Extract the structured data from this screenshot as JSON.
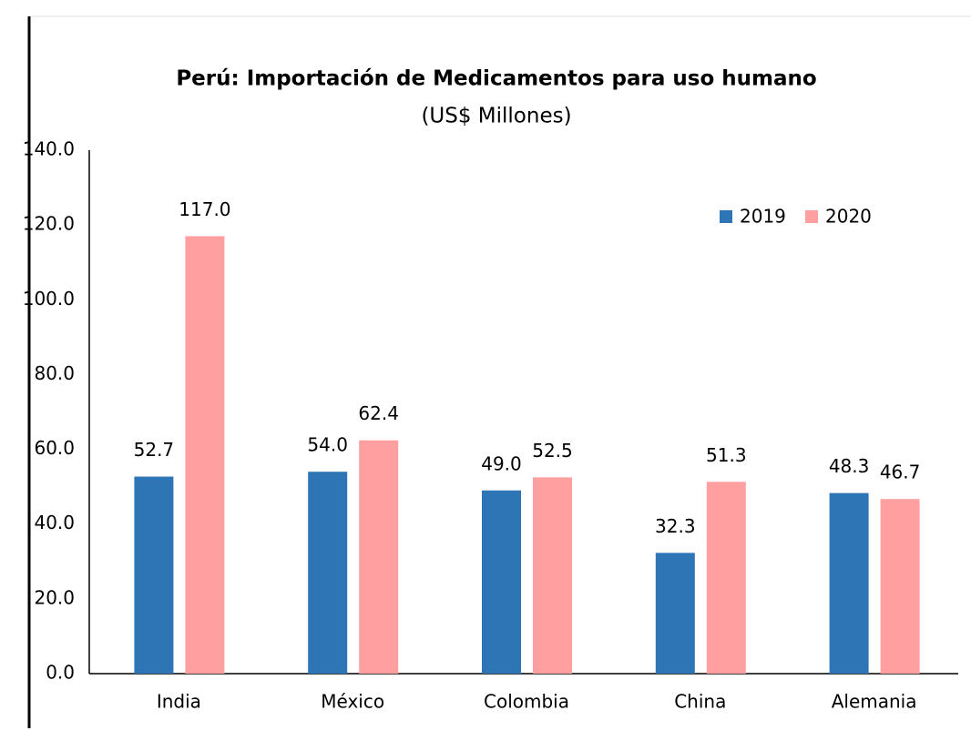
{
  "chart_data": {
    "type": "bar",
    "title": "Perú: Importación de Medicamentos para uso humano",
    "subtitle": "(US$ Millones)",
    "categories": [
      "India",
      "México",
      "Colombia",
      "China",
      "Alemania"
    ],
    "series": [
      {
        "name": "2019",
        "color": "#2e75b6",
        "values": [
          52.7,
          54,
          49,
          32.3,
          48.3
        ],
        "value_labels": [
          "52.7",
          "54.0",
          "49.0",
          "32.3",
          "48.3"
        ]
      },
      {
        "name": "2020",
        "color": "#ff9f9f",
        "values": [
          117,
          62.4,
          52.5,
          51.3,
          46.7
        ],
        "value_labels": [
          "117.0",
          "62.4",
          "52.5",
          "51.3",
          "46.7"
        ]
      }
    ],
    "ylim": [
      0,
      140
    ],
    "yticks": [
      {
        "value": 0,
        "label": "0.0"
      },
      {
        "value": 20,
        "label": "20.0"
      },
      {
        "value": 40,
        "label": "40.0"
      },
      {
        "value": 60,
        "label": "60.0"
      },
      {
        "value": 80,
        "label": "80.0"
      },
      {
        "value": 100,
        "label": "100.0"
      },
      {
        "value": 120,
        "label": "120.0"
      },
      {
        "value": 140,
        "label": "140.0"
      }
    ],
    "grid": false,
    "legend": "upper right"
  }
}
